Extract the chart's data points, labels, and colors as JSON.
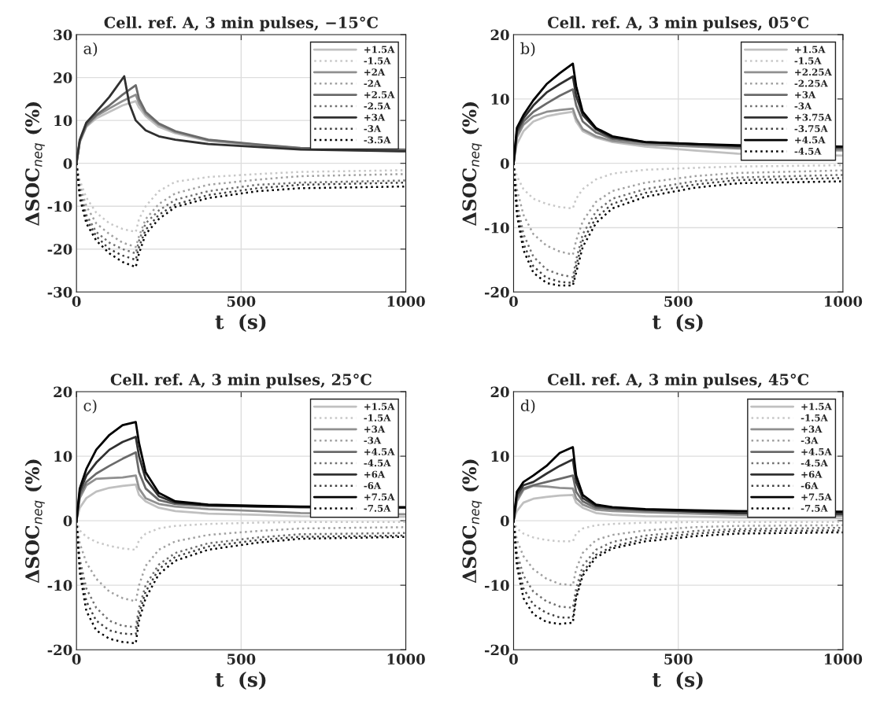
{
  "chart_data": [
    {
      "type": "line",
      "title": "Cell. ref. A, 3 min pulses, −15°C",
      "xlabel": "t  (s)",
      "ylabel": "ΔSOC$_{neq}$ (%)",
      "annotations": [
        "a)"
      ],
      "xlim": [
        0,
        1000
      ],
      "xticks": [
        0,
        500,
        1000
      ],
      "ylim": [
        -30,
        30
      ],
      "yticks": [
        -30,
        -20,
        -10,
        0,
        10,
        20,
        30
      ],
      "grid": true,
      "legend": "top right",
      "x": [
        0,
        10,
        30,
        60,
        100,
        140,
        180,
        190,
        210,
        250,
        300,
        400,
        550,
        680,
        1000
      ],
      "series": [
        {
          "name": "+1.5A",
          "color": "#c0c0c0",
          "line_style": "solid",
          "values": [
            0,
            5,
            8.5,
            10.5,
            12,
            13.5,
            14.5,
            13,
            11,
            8.5,
            7,
            5.2,
            4.2,
            3.4,
            2.8
          ]
        },
        {
          "name": "-1.5A",
          "color": "#c8c8c8",
          "line_style": "dotted",
          "values": [
            0,
            -4,
            -8,
            -11.5,
            -14,
            -15.3,
            -16,
            -13,
            -10,
            -6.5,
            -4.3,
            -3.2,
            -2.5,
            -2,
            -1.6
          ]
        },
        {
          "name": "+2A",
          "color": "#909090",
          "line_style": "solid",
          "values": [
            0,
            5,
            8.7,
            11,
            12.8,
            14.5,
            16,
            14,
            11.5,
            9,
            7.3,
            5.4,
            4.3,
            3.5,
            3
          ]
        },
        {
          "name": "-2A",
          "color": "#a0a0a0",
          "line_style": "dotted",
          "values": [
            0,
            -5,
            -10,
            -14,
            -16.5,
            -18.5,
            -19.5,
            -17,
            -13,
            -9.5,
            -7,
            -5,
            -3.8,
            -3,
            -2.5
          ]
        },
        {
          "name": "+2.5A",
          "color": "#6a6a6a",
          "line_style": "solid",
          "values": [
            0,
            5.2,
            9,
            11.3,
            13.5,
            16,
            18.2,
            15,
            12,
            9.3,
            7.5,
            5.5,
            4.4,
            3.6,
            3.2
          ]
        },
        {
          "name": "-2.5A",
          "color": "#707070",
          "line_style": "dotted",
          "values": [
            0,
            -6,
            -12,
            -16,
            -18.5,
            -20,
            -21,
            -18,
            -14,
            -11,
            -8.5,
            -6.5,
            -5,
            -4.5,
            -4
          ]
        },
        {
          "name": "+3A",
          "color": "#303030",
          "line_style": "solid",
          "x": [
            0,
            10,
            30,
            60,
            100,
            145,
            160,
            180,
            210,
            250,
            300,
            400,
            550,
            680,
            1000
          ],
          "values": [
            0,
            5.5,
            9.5,
            12,
            15.5,
            20.3,
            14,
            10,
            7.7,
            6.3,
            5.5,
            4.5,
            3.8,
            3.2,
            2.8
          ]
        },
        {
          "name": "-3A",
          "color": "#404040",
          "line_style": "dotted",
          "values": [
            0,
            -7,
            -13,
            -17,
            -20,
            -21.5,
            -22.5,
            -19.5,
            -15.5,
            -12,
            -9.6,
            -7.4,
            -5.8,
            -5,
            -4.5
          ]
        },
        {
          "name": "-3.5A",
          "color": "#000000",
          "line_style": "dotted",
          "values": [
            0,
            -8,
            -14,
            -18,
            -21,
            -23,
            -24.2,
            -21,
            -16.5,
            -13,
            -10.2,
            -8.1,
            -6.5,
            -5.8,
            -5.4
          ]
        }
      ]
    },
    {
      "type": "line",
      "title": "Cell. ref. A, 3 min pulses, 05°C",
      "xlabel": "t  (s)",
      "ylabel": "ΔSOC$_{neq}$ (%)",
      "annotations": [
        "b)"
      ],
      "xlim": [
        0,
        1000
      ],
      "xticks": [
        0,
        500,
        1000
      ],
      "ylim": [
        -20,
        20
      ],
      "yticks": [
        -20,
        -10,
        0,
        10,
        20
      ],
      "grid": true,
      "legend": "top right",
      "x": [
        0,
        10,
        30,
        60,
        100,
        140,
        180,
        190,
        210,
        250,
        300,
        400,
        550,
        680,
        1000
      ],
      "series": [
        {
          "name": "+1.5A",
          "color": "#c0c0c0",
          "line_style": "solid",
          "values": [
            0,
            3,
            5,
            6.5,
            7.3,
            7.7,
            8,
            6.5,
            5,
            4,
            3.3,
            2.6,
            2,
            1.5,
            1.2
          ]
        },
        {
          "name": "-1.5A",
          "color": "#c8c8c8",
          "line_style": "dotted",
          "values": [
            0,
            -2,
            -4,
            -5.5,
            -6.3,
            -6.8,
            -7,
            -5.5,
            -4,
            -2.5,
            -1.6,
            -1,
            -0.7,
            -0.5,
            -0.3
          ]
        },
        {
          "name": "+2.25A",
          "color": "#909090",
          "line_style": "solid",
          "values": [
            0,
            4,
            6,
            7.3,
            8,
            8.3,
            8.5,
            7,
            5.3,
            4.2,
            3.5,
            2.9,
            2.6,
            2.3,
            2
          ]
        },
        {
          "name": "-2.25A",
          "color": "#a0a0a0",
          "line_style": "dotted",
          "values": [
            0,
            -4,
            -8,
            -11,
            -12.8,
            -13.7,
            -14.2,
            -12,
            -9,
            -6,
            -4.3,
            -3,
            -2,
            -1.5,
            -1.1
          ]
        },
        {
          "name": "+3A",
          "color": "#6a6a6a",
          "line_style": "solid",
          "values": [
            0,
            4.5,
            6.5,
            8,
            9.3,
            10.5,
            11.5,
            9,
            6.5,
            4.8,
            3.8,
            3.2,
            2.8,
            2.5,
            2.3
          ]
        },
        {
          "name": "-3A",
          "color": "#707070",
          "line_style": "dotted",
          "values": [
            0,
            -6,
            -11,
            -14.5,
            -16.5,
            -17.3,
            -17.7,
            -15,
            -11,
            -7.5,
            -5.5,
            -4,
            -2.8,
            -2.2,
            -1.8
          ]
        },
        {
          "name": "+3.75A",
          "color": "#303030",
          "line_style": "solid",
          "values": [
            0,
            5,
            7,
            9,
            11,
            12.3,
            13.5,
            10.5,
            7.5,
            5.3,
            4,
            3.3,
            3,
            2.7,
            2.5
          ]
        },
        {
          "name": "-3.75A",
          "color": "#404040",
          "line_style": "dotted",
          "values": [
            0,
            -7,
            -12.5,
            -16,
            -17.8,
            -18.4,
            -18.6,
            -16,
            -12,
            -8.5,
            -6.3,
            -4.6,
            -3.3,
            -2.6,
            -2.3
          ]
        },
        {
          "name": "+4.5A",
          "color": "#000000",
          "line_style": "solid",
          "values": [
            0,
            5.5,
            7.5,
            9.8,
            12.3,
            14,
            15.5,
            12,
            8,
            5.5,
            4.2,
            3.3,
            3,
            2.8,
            2.6
          ]
        },
        {
          "name": "-4.5A",
          "color": "#000000",
          "line_style": "dotted",
          "values": [
            0,
            -8,
            -13.5,
            -17,
            -18.6,
            -19,
            -19,
            -17,
            -13,
            -9.3,
            -7,
            -5.2,
            -3.8,
            -3.1,
            -2.8
          ]
        }
      ]
    },
    {
      "type": "line",
      "title": "Cell. ref. A, 3 min pulses, 25°C",
      "xlabel": "t  (s)",
      "ylabel": "ΔSOC$_{neq}$ (%)",
      "annotations": [
        "c)"
      ],
      "xlim": [
        0,
        1000
      ],
      "xticks": [
        0,
        500,
        1000
      ],
      "ylim": [
        -20,
        20
      ],
      "yticks": [
        -20,
        -10,
        0,
        10,
        20
      ],
      "grid": true,
      "legend": "top right",
      "x": [
        0,
        10,
        30,
        60,
        100,
        140,
        180,
        190,
        210,
        250,
        300,
        400,
        550,
        680,
        1000
      ],
      "series": [
        {
          "name": "+1.5A",
          "color": "#c0c0c0",
          "line_style": "solid",
          "values": [
            0,
            2,
            3.5,
            4.5,
            5.1,
            5.4,
            5.6,
            4,
            3,
            2,
            1.5,
            1.1,
            0.9,
            0.7,
            0.6
          ]
        },
        {
          "name": "-1.5A",
          "color": "#c8c8c8",
          "line_style": "dotted",
          "values": [
            0,
            -1.5,
            -2.5,
            -3.3,
            -3.9,
            -4.3,
            -4.5,
            -3,
            -2,
            -1.2,
            -0.8,
            -0.5,
            -0.3,
            -0.2,
            -0.2
          ]
        },
        {
          "name": "+3A",
          "color": "#909090",
          "line_style": "solid",
          "values": [
            0,
            3.5,
            5.5,
            6.5,
            6.6,
            6.7,
            7,
            5,
            3.5,
            2.6,
            2.2,
            1.8,
            1.5,
            1.2,
            1
          ]
        },
        {
          "name": "-3A",
          "color": "#a0a0a0",
          "line_style": "dotted",
          "values": [
            0,
            -3.5,
            -6.5,
            -9,
            -11,
            -12,
            -12.5,
            -10,
            -7,
            -4.5,
            -3.2,
            -2.2,
            -1.6,
            -1.2,
            -1
          ]
        },
        {
          "name": "+4.5A",
          "color": "#6a6a6a",
          "line_style": "solid",
          "values": [
            0,
            4,
            6,
            7.3,
            8.5,
            9.6,
            10.6,
            7.5,
            5,
            3.2,
            2.6,
            2.3,
            2.2,
            2.1,
            2
          ]
        },
        {
          "name": "-4.5A",
          "color": "#707070",
          "line_style": "dotted",
          "values": [
            0,
            -6,
            -10.5,
            -13.5,
            -15.5,
            -16.3,
            -16.5,
            -13.5,
            -10,
            -6.8,
            -5,
            -3.5,
            -2.6,
            -2.1,
            -1.9
          ]
        },
        {
          "name": "+6A",
          "color": "#303030",
          "line_style": "solid",
          "values": [
            0,
            4.5,
            7,
            9,
            11,
            12.2,
            13,
            10,
            6.5,
            3.8,
            2.8,
            2.4,
            2.2,
            2.1,
            2
          ]
        },
        {
          "name": "-6A",
          "color": "#404040",
          "line_style": "dotted",
          "values": [
            0,
            -7,
            -12.5,
            -15.5,
            -17,
            -17.5,
            -17.6,
            -14.5,
            -11,
            -7.5,
            -5.6,
            -4,
            -3,
            -2.5,
            -2.3
          ]
        },
        {
          "name": "+7.5A",
          "color": "#000000",
          "line_style": "solid",
          "values": [
            0,
            5,
            8,
            11,
            13.3,
            14.8,
            15.3,
            12,
            7.5,
            4.3,
            3,
            2.5,
            2.3,
            2.2,
            2.1
          ]
        },
        {
          "name": "-7.5A",
          "color": "#000000",
          "line_style": "dotted",
          "values": [
            0,
            -8,
            -14,
            -17,
            -18.3,
            -18.8,
            -19,
            -15.5,
            -12,
            -8.3,
            -6.2,
            -4.5,
            -3.4,
            -2.8,
            -2.5
          ]
        }
      ]
    },
    {
      "type": "line",
      "title": "Cell. ref. A, 3 min pulses, 45°C",
      "xlabel": "t  (s)",
      "ylabel": "ΔSOC$_{neq}$ (%)",
      "annotations": [
        "d)"
      ],
      "xlim": [
        0,
        1000
      ],
      "xticks": [
        0,
        500,
        1000
      ],
      "ylim": [
        -20,
        20
      ],
      "yticks": [
        -20,
        -10,
        0,
        10,
        20
      ],
      "grid": true,
      "legend": "top right",
      "x": [
        0,
        10,
        30,
        60,
        100,
        140,
        180,
        190,
        210,
        250,
        300,
        400,
        550,
        680,
        1000
      ],
      "series": [
        {
          "name": "+1.5A",
          "color": "#c0c0c0",
          "line_style": "solid",
          "values": [
            0,
            1.5,
            2.8,
            3.4,
            3.7,
            3.9,
            4,
            2.8,
            2,
            1.2,
            0.9,
            0.7,
            0.6,
            0.5,
            0.4
          ]
        },
        {
          "name": "-1.5A",
          "color": "#c8c8c8",
          "line_style": "dotted",
          "values": [
            0,
            -1.2,
            -2,
            -2.6,
            -3,
            -3.2,
            -3.2,
            -2,
            -1.2,
            -0.7,
            -0.5,
            -0.3,
            -0.2,
            -0.2,
            -0.2
          ]
        },
        {
          "name": "+3A",
          "color": "#909090",
          "line_style": "solid",
          "values": [
            0,
            3,
            4.8,
            5.4,
            5.3,
            5.1,
            5,
            3.5,
            2.5,
            1.7,
            1.5,
            1.3,
            1.1,
            0.9,
            0.8
          ]
        },
        {
          "name": "-3A",
          "color": "#a0a0a0",
          "line_style": "dotted",
          "values": [
            0,
            -3,
            -5.5,
            -7.5,
            -9,
            -9.8,
            -10,
            -7.5,
            -5,
            -3,
            -2.2,
            -1.5,
            -1,
            -0.8,
            -0.7
          ]
        },
        {
          "name": "+4.5A",
          "color": "#6a6a6a",
          "line_style": "solid",
          "values": [
            0,
            3.5,
            5,
            5.5,
            6,
            6.5,
            7,
            4.5,
            3,
            2,
            1.8,
            1.6,
            1.4,
            1.2,
            1
          ]
        },
        {
          "name": "-4.5A",
          "color": "#707070",
          "line_style": "dotted",
          "values": [
            0,
            -5,
            -8.5,
            -11,
            -12.5,
            -13.3,
            -13.5,
            -10.5,
            -7,
            -4.5,
            -3.3,
            -2.3,
            -1.6,
            -1.3,
            -1.1
          ]
        },
        {
          "name": "+6A",
          "color": "#303030",
          "line_style": "solid",
          "values": [
            0,
            4,
            5.5,
            6,
            7.3,
            8.5,
            9.5,
            6,
            3.5,
            2.3,
            2,
            1.7,
            1.4,
            1.2,
            1.1
          ]
        },
        {
          "name": "-6A",
          "color": "#404040",
          "line_style": "dotted",
          "values": [
            0,
            -6,
            -10.5,
            -13,
            -14.3,
            -15,
            -15,
            -11.5,
            -8,
            -5.3,
            -4,
            -2.8,
            -2,
            -1.6,
            -1.5
          ]
        },
        {
          "name": "+7.5A",
          "color": "#000000",
          "line_style": "solid",
          "values": [
            0,
            4.5,
            6,
            7,
            8.5,
            10.5,
            11.4,
            7,
            4,
            2.5,
            2.1,
            1.8,
            1.6,
            1.5,
            1.4
          ]
        },
        {
          "name": "-7.5A",
          "color": "#000000",
          "line_style": "dotted",
          "values": [
            0,
            -7,
            -12,
            -14.5,
            -15.7,
            -16,
            -15.8,
            -12,
            -8.5,
            -5.7,
            -4.3,
            -3.2,
            -2.4,
            -2,
            -1.8
          ]
        }
      ]
    }
  ]
}
